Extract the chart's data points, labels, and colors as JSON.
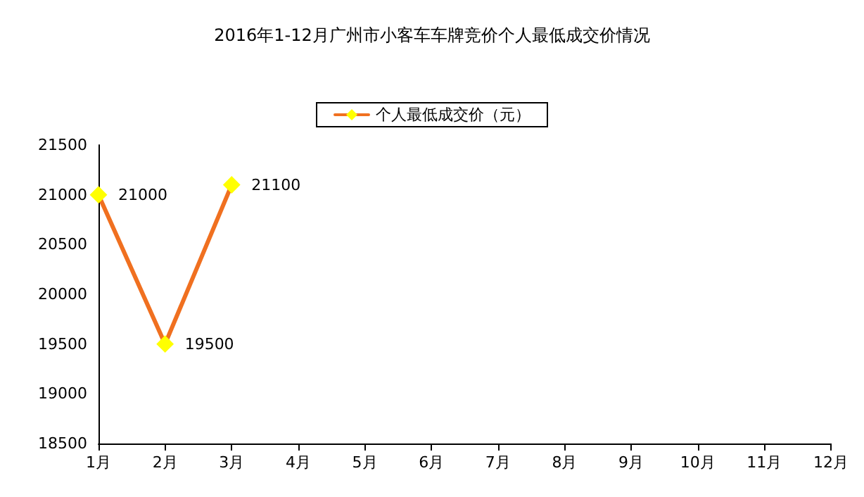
{
  "chart_data": {
    "type": "line",
    "title": "2016年1-12月广州市小客车车牌竞价个人最低成交价情况",
    "categories": [
      "1月",
      "2月",
      "3月",
      "4月",
      "5月",
      "6月",
      "7月",
      "8月",
      "9月",
      "10月",
      "11月",
      "12月"
    ],
    "series": [
      {
        "name": "个人最低成交价（元）",
        "color": "#f07020",
        "values": [
          21000,
          19500,
          21100,
          null,
          null,
          null,
          null,
          null,
          null,
          null,
          null,
          null
        ]
      }
    ],
    "ylim": [
      18500,
      21500
    ],
    "yticks": [
      18500,
      19000,
      19500,
      20000,
      20500,
      21000,
      21500
    ],
    "grid": false,
    "legend": "top",
    "marker": "diamond",
    "data_labels": true
  }
}
